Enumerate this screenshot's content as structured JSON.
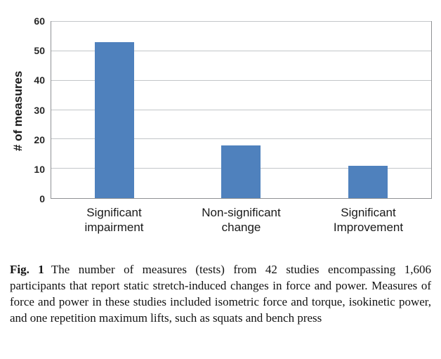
{
  "chart_data": {
    "type": "bar",
    "categories": [
      "Significant\nimpairment",
      "Non-significant\nchange",
      "Significant\nImprovement"
    ],
    "values": [
      53,
      18,
      11
    ],
    "title": "",
    "xlabel": "",
    "ylabel": "# of measures",
    "ylim": [
      0,
      60
    ],
    "yticks": [
      0,
      10,
      20,
      30,
      40,
      50,
      60
    ],
    "bar_color": "#4F81BD",
    "grid": true,
    "legend": false
  },
  "caption": {
    "label": "Fig. 1",
    "text": "The number of measures (tests) from 42 studies encompassing 1,606 participants that report static stretch-induced changes in force and power. Measures of force and power in these studies included isometric force and torque, isokinetic power, and one repetition maximum lifts, such as squats and bench press"
  }
}
